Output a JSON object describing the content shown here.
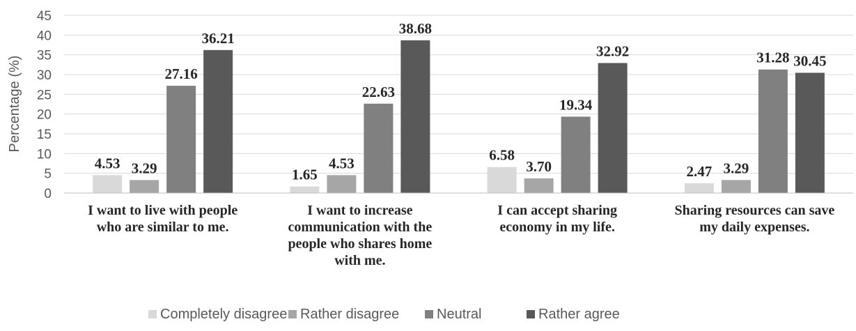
{
  "chart_data": {
    "type": "bar",
    "title": "",
    "xlabel": "",
    "ylabel": "Percentage (%)",
    "ylim": [
      0,
      45
    ],
    "ytick_step": 5,
    "yticks": [
      "0",
      "5",
      "10",
      "15",
      "20",
      "25",
      "30",
      "35",
      "40",
      "45"
    ],
    "grid": true,
    "legend_position": "bottom",
    "categories": [
      [
        "I want to live with people",
        "who are similar to me."
      ],
      [
        "I want to increase",
        "communication with the",
        "people who shares home",
        "with me."
      ],
      [
        "I can accept sharing",
        "economy in my life."
      ],
      [
        "Sharing resources can save",
        "my daily expenses."
      ]
    ],
    "series": [
      {
        "name": "Completely disagree",
        "color": "#d9d9d9",
        "values": [
          4.53,
          1.65,
          6.58,
          2.47
        ],
        "labels": [
          "4.53",
          "1.65",
          "6.58",
          "2.47"
        ]
      },
      {
        "name": "Rather disagree",
        "color": "#a6a6a6",
        "values": [
          3.29,
          4.53,
          3.7,
          3.29
        ],
        "labels": [
          "3.29",
          "4.53",
          "3.70",
          "3.29"
        ]
      },
      {
        "name": "Neutral",
        "color": "#808080",
        "values": [
          27.16,
          22.63,
          19.34,
          31.28
        ],
        "labels": [
          "27.16",
          "22.63",
          "19.34",
          "31.28"
        ]
      },
      {
        "name": "Rather agree",
        "color": "#595959",
        "values": [
          36.21,
          38.68,
          32.92,
          30.45
        ],
        "labels": [
          "36.21",
          "38.68",
          "32.92",
          "30.45"
        ]
      }
    ]
  }
}
